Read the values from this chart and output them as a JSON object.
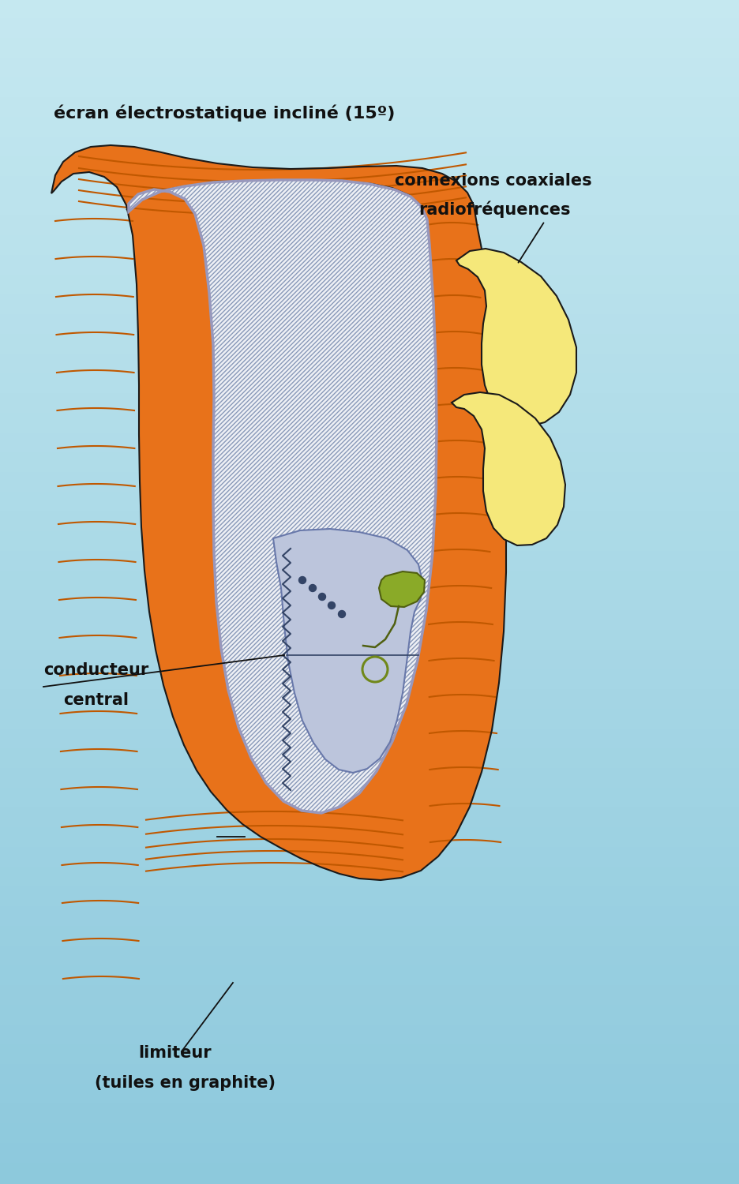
{
  "bg_top": "#c5e8f0",
  "bg_bottom": "#8cc8dc",
  "orange_fill": "#e8721a",
  "orange_edge": "#1a1a1a",
  "orange_rib": "#c05800",
  "white_fill": "#f0f2f8",
  "stripe_edge": "#8898b8",
  "silver_edge": "#9090b8",
  "blue_panel_fill": "#bcc4dc",
  "yellow_fill": "#f5e87a",
  "yellow_edge": "#1a1a1a",
  "green_fill": "#8aaa28",
  "green_edge": "#506010",
  "text_color": "#111111",
  "label_ecran": "écran électrostatique incliné (15º)",
  "label_conn1": "connexions coaxiales",
  "label_conn2": "radiofréquences",
  "label_cond1": "conducteur",
  "label_cond2": "central",
  "label_lim1": "limiteur",
  "label_lim2": "(tuiles en graphite)",
  "fs": 15
}
